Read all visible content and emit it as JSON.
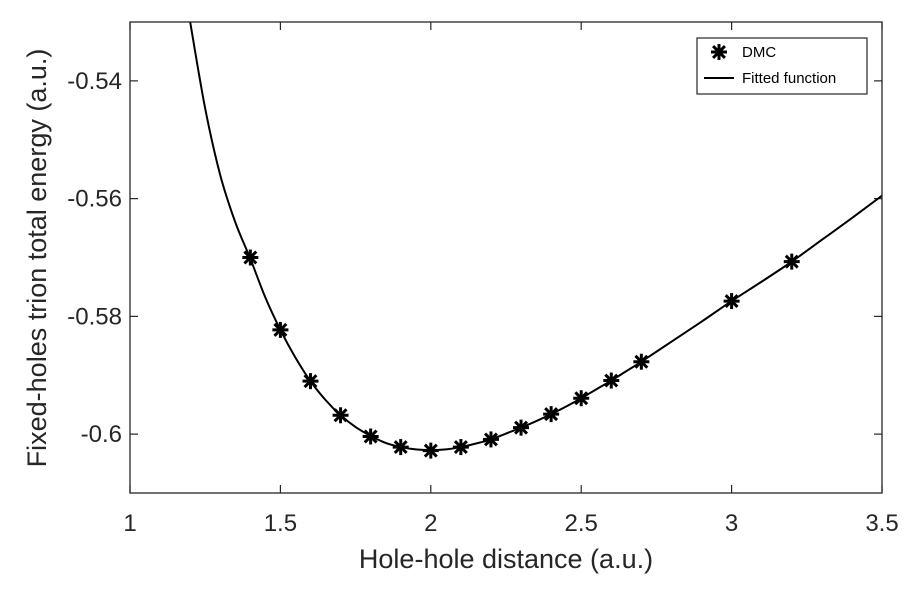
{
  "chart_data": {
    "type": "scatter",
    "title": "",
    "xlabel": "Hole-hole distance (a.u.)",
    "ylabel": "Fixed-holes trion total energy (a.u.)",
    "xlim": [
      1,
      3.5
    ],
    "ylim": [
      -0.61,
      -0.53
    ],
    "x_ticks": [
      1,
      1.5,
      2,
      2.5,
      3,
      3.5
    ],
    "x_tick_labels": [
      "1",
      "1.5",
      "2",
      "2.5",
      "3",
      "3.5"
    ],
    "y_ticks": [
      -0.54,
      -0.56,
      -0.58,
      -0.6
    ],
    "y_tick_labels": [
      "-0.54",
      "-0.56",
      "-0.58",
      "-0.6"
    ],
    "grid": false,
    "legend_position": "top-right",
    "series": [
      {
        "name": "DMC",
        "kind": "markers",
        "marker": "asterisk",
        "x": [
          1.4,
          1.5,
          1.6,
          1.7,
          1.8,
          1.9,
          2.0,
          2.1,
          2.2,
          2.3,
          2.4,
          2.5,
          2.6,
          2.7,
          3.0,
          3.2
        ],
        "y": [
          -0.57,
          -0.5823,
          -0.591,
          -0.5968,
          -0.6004,
          -0.6022,
          -0.6028,
          -0.6022,
          -0.6009,
          -0.5989,
          -0.5966,
          -0.5939,
          -0.5909,
          -0.5877,
          -0.5774,
          -0.5707
        ]
      },
      {
        "name": "Fitted function",
        "kind": "line",
        "x": [
          1.2,
          1.25,
          1.3,
          1.35,
          1.4,
          1.45,
          1.5,
          1.55,
          1.6,
          1.65,
          1.7,
          1.75,
          1.8,
          1.85,
          1.9,
          1.95,
          2.0,
          2.05,
          2.1,
          2.15,
          2.2,
          2.25,
          2.3,
          2.35,
          2.4,
          2.45,
          2.5,
          2.55,
          2.6,
          2.65,
          2.7,
          2.8,
          2.9,
          3.0,
          3.1,
          3.2,
          3.3,
          3.4,
          3.5
        ],
        "y": [
          -0.53,
          -0.5447,
          -0.556,
          -0.564,
          -0.5702,
          -0.5768,
          -0.5823,
          -0.587,
          -0.591,
          -0.5942,
          -0.5968,
          -0.5988,
          -0.6003,
          -0.6015,
          -0.6022,
          -0.6026,
          -0.6027,
          -0.6026,
          -0.6022,
          -0.6016,
          -0.6009,
          -0.5999,
          -0.5989,
          -0.5978,
          -0.5966,
          -0.5953,
          -0.5939,
          -0.5924,
          -0.5909,
          -0.5893,
          -0.5877,
          -0.5843,
          -0.5809,
          -0.5774,
          -0.5741,
          -0.5707,
          -0.567,
          -0.5633,
          -0.5595
        ]
      }
    ]
  }
}
